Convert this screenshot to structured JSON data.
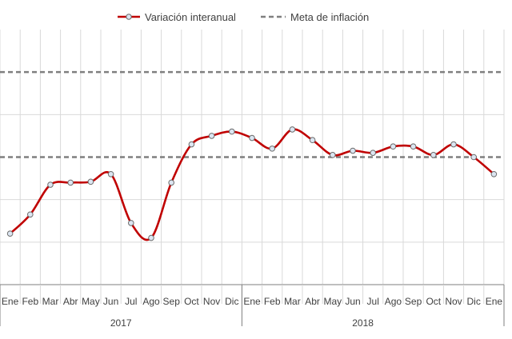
{
  "chart_data": {
    "type": "line",
    "legend": {
      "position": "top",
      "items": [
        {
          "label": "Variación interanual",
          "style": "solid-marker",
          "color": "#c00000"
        },
        {
          "label": "Meta de inflación",
          "style": "dashed",
          "color": "#7f7f7f"
        }
      ]
    },
    "grid": true,
    "ylim": [
      0,
      6
    ],
    "y_ticks_shown": false,
    "reference_lines": [
      3,
      5
    ],
    "x_labels": [
      "Ene",
      "Feb",
      "Mar",
      "Abr",
      "May",
      "Jun",
      "Jul",
      "Ago",
      "Sep",
      "Oct",
      "Nov",
      "Dic",
      "Ene",
      "Feb",
      "Mar",
      "Abr",
      "May",
      "Jun",
      "Jul",
      "Ago",
      "Sep",
      "Oct",
      "Nov",
      "Dic",
      "Ene"
    ],
    "groups": [
      {
        "label": "2017",
        "start": 0,
        "end": 11
      },
      {
        "label": "2018",
        "start": 12,
        "end": 23
      }
    ],
    "series": [
      {
        "name": "Variación interanual",
        "color": "#c00000",
        "values": [
          1.2,
          1.65,
          2.35,
          2.4,
          2.42,
          2.6,
          1.45,
          1.1,
          2.4,
          3.3,
          3.5,
          3.6,
          3.45,
          3.2,
          3.65,
          3.4,
          3.05,
          3.15,
          3.1,
          3.25,
          3.25,
          3.05,
          3.3,
          3.0,
          2.6
        ]
      }
    ],
    "colors": {
      "series": "#c00000",
      "reference": "#7f7f7f",
      "grid": "#d9d9d9",
      "axis": "#7f7f7f",
      "marker_fill": "#dce6f2"
    }
  }
}
